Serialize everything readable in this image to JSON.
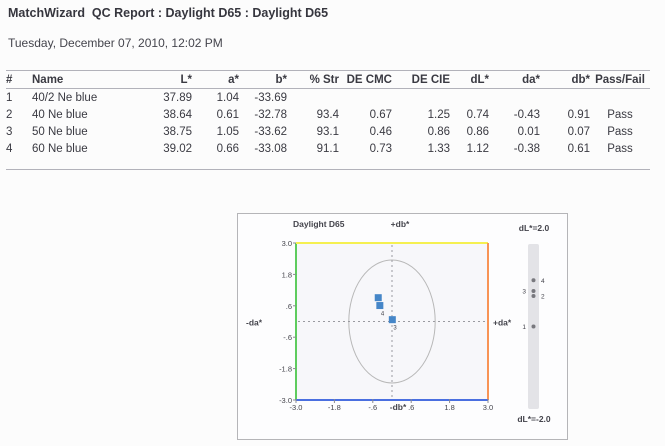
{
  "report": {
    "title": "MatchWizard  QC Report : Daylight D65 : Daylight D65",
    "date": "Tuesday, December 07, 2010, 12:02 PM"
  },
  "table": {
    "columns": [
      "#",
      "Name",
      "L*",
      "a*",
      "b*",
      "% Str",
      "DE CMC",
      "DE CIE",
      "dL*",
      "da*",
      "db*",
      "Pass/Fail"
    ],
    "rows": [
      [
        "1",
        "40/2 Ne blue",
        "37.89",
        "1.04",
        "-33.69",
        "",
        "",
        "",
        "",
        "",
        "",
        ""
      ],
      [
        "2",
        "40 Ne blue",
        "38.64",
        "0.61",
        "-32.78",
        "93.4",
        "0.67",
        "1.25",
        "0.74",
        "-0.43",
        "0.91",
        "Pass"
      ],
      [
        "3",
        "50 Ne blue",
        "38.75",
        "1.05",
        "-33.62",
        "93.1",
        "0.46",
        "0.86",
        "0.86",
        "0.01",
        "0.07",
        "Pass"
      ],
      [
        "4",
        "60 Ne blue",
        "39.02",
        "0.66",
        "-33.08",
        "91.1",
        "0.73",
        "1.33",
        "1.12",
        "-0.38",
        "0.61",
        "Pass"
      ]
    ]
  },
  "chart_data": {
    "type": "scatter",
    "title": "Daylight D65",
    "axis_labels": {
      "top": "+db*",
      "bottom": "-db*",
      "left": "-da*",
      "right": "+da*"
    },
    "xlim": [
      -3.0,
      3.0
    ],
    "ylim": [
      -3.0,
      3.0
    ],
    "x_ticks": [
      "-3.0",
      "-1.8",
      "-.6",
      ".6",
      "1.8",
      "3.0"
    ],
    "y_ticks": [
      "3.0",
      "1.8",
      ".6",
      "-.6",
      "-1.8",
      "-3.0"
    ],
    "grid": "center-crosshair-dashed",
    "points": [
      {
        "id": "2",
        "da": -0.43,
        "db": 0.91
      },
      {
        "id": "4",
        "da": -0.38,
        "db": 0.61
      },
      {
        "id": "3",
        "da": 0.01,
        "db": 0.07
      }
    ],
    "tolerance_ellipse": {
      "center_da": 0,
      "center_db": 0,
      "rx_da": 1.35,
      "ry_db": 2.35
    },
    "dl_scale": {
      "top_label": "dL*=2.0",
      "bottom_label": "dL*=-2.0",
      "range": [
        -2.0,
        2.0
      ],
      "points": [
        {
          "id": "4",
          "dl": 1.12,
          "label_side": "right"
        },
        {
          "id": "3",
          "dl": 0.86,
          "label_side": "left"
        },
        {
          "id": "2",
          "dl": 0.74,
          "label_side": "right"
        },
        {
          "id": "1",
          "dl": 0.0,
          "label_side": "left"
        }
      ]
    },
    "colors": {
      "border_left": "#5ecc5e",
      "border_top": "#f5f050",
      "border_right": "#f89355",
      "border_bottom": "#4a6fe0",
      "point": "#4586c8",
      "ellipse": "#b8b8b8",
      "crosshair": "#9a9aa0",
      "bar": "#e3e3e7",
      "bar_dot": "#78787e",
      "plot_bg": "#f7f7fa"
    }
  }
}
